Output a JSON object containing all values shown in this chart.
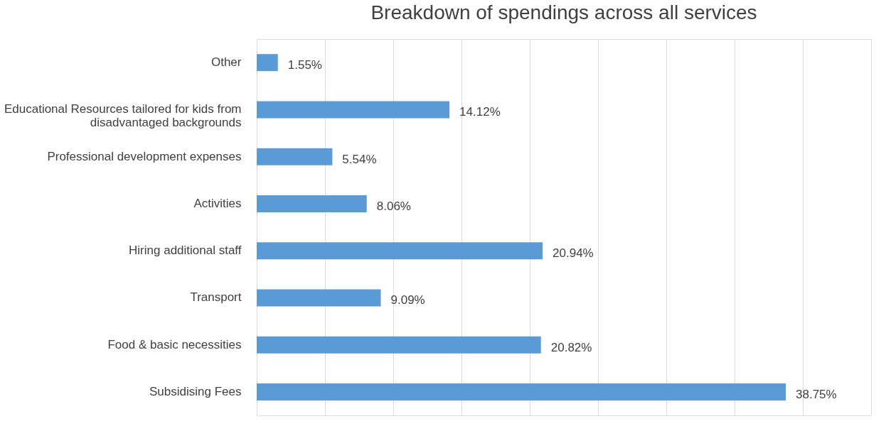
{
  "chart_data": {
    "type": "bar",
    "orientation": "horizontal",
    "title": "Breakdown of spendings across all services",
    "categories": [
      "Other",
      "Educational Resources tailored for kids from disadvantaged backgrounds",
      "Professional development expenses",
      "Activities",
      "Hiring additional staff",
      "Transport",
      "Food & basic necessities",
      "Subsidising Fees"
    ],
    "values": [
      1.55,
      14.12,
      5.54,
      8.06,
      20.94,
      9.09,
      20.82,
      38.75
    ],
    "value_labels": [
      "1.55%",
      "14.12%",
      "5.54%",
      "8.06%",
      "20.94%",
      "9.09%",
      "20.82%",
      "38.75%"
    ],
    "color": "#5b9bd5",
    "xlim": [
      0,
      45
    ],
    "xticks": [
      0,
      5,
      10,
      15,
      20,
      25,
      30,
      35,
      40,
      45
    ],
    "grid": "x",
    "tick_labels": "y"
  }
}
